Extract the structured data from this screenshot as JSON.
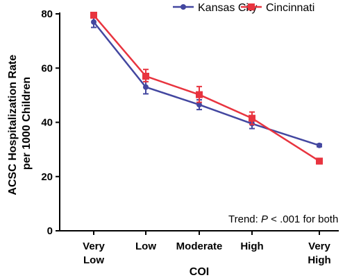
{
  "chart_data": {
    "type": "line",
    "categories": [
      [
        "Very",
        "Low"
      ],
      [
        "Low"
      ],
      [
        "Moderate"
      ],
      [
        "High"
      ],
      [
        "Very",
        "High"
      ]
    ],
    "xlabel": "COI",
    "ylabel_lines": [
      "ACSC Hospitalization Rate",
      "per 1000 Children"
    ],
    "ylim": [
      0,
      80
    ],
    "yticks": [
      0,
      20,
      40,
      60,
      80
    ],
    "grid": false,
    "legend_position": "top-right",
    "series": [
      {
        "name": "Kansas City",
        "color": "#4347a0",
        "marker": "circle",
        "values": [
          77,
          53,
          46.5,
          39.5,
          31.5
        ],
        "err_low": [
          2,
          2.5,
          1.8,
          1.8,
          0.5
        ],
        "err_high": [
          2,
          2,
          1.8,
          1.8,
          0.5
        ]
      },
      {
        "name": "Cincinnati",
        "color": "#e8343f",
        "marker": "square",
        "values": [
          79.5,
          57,
          50.2,
          41.5,
          25.7
        ],
        "err_low": [
          0.8,
          2,
          2.8,
          2.3,
          1
        ],
        "err_high": [
          0.8,
          2.5,
          3,
          2.3,
          1
        ]
      }
    ],
    "annotation": {
      "prefix": "Trend: ",
      "italic": "P",
      "suffix": " < .001 for both"
    }
  }
}
